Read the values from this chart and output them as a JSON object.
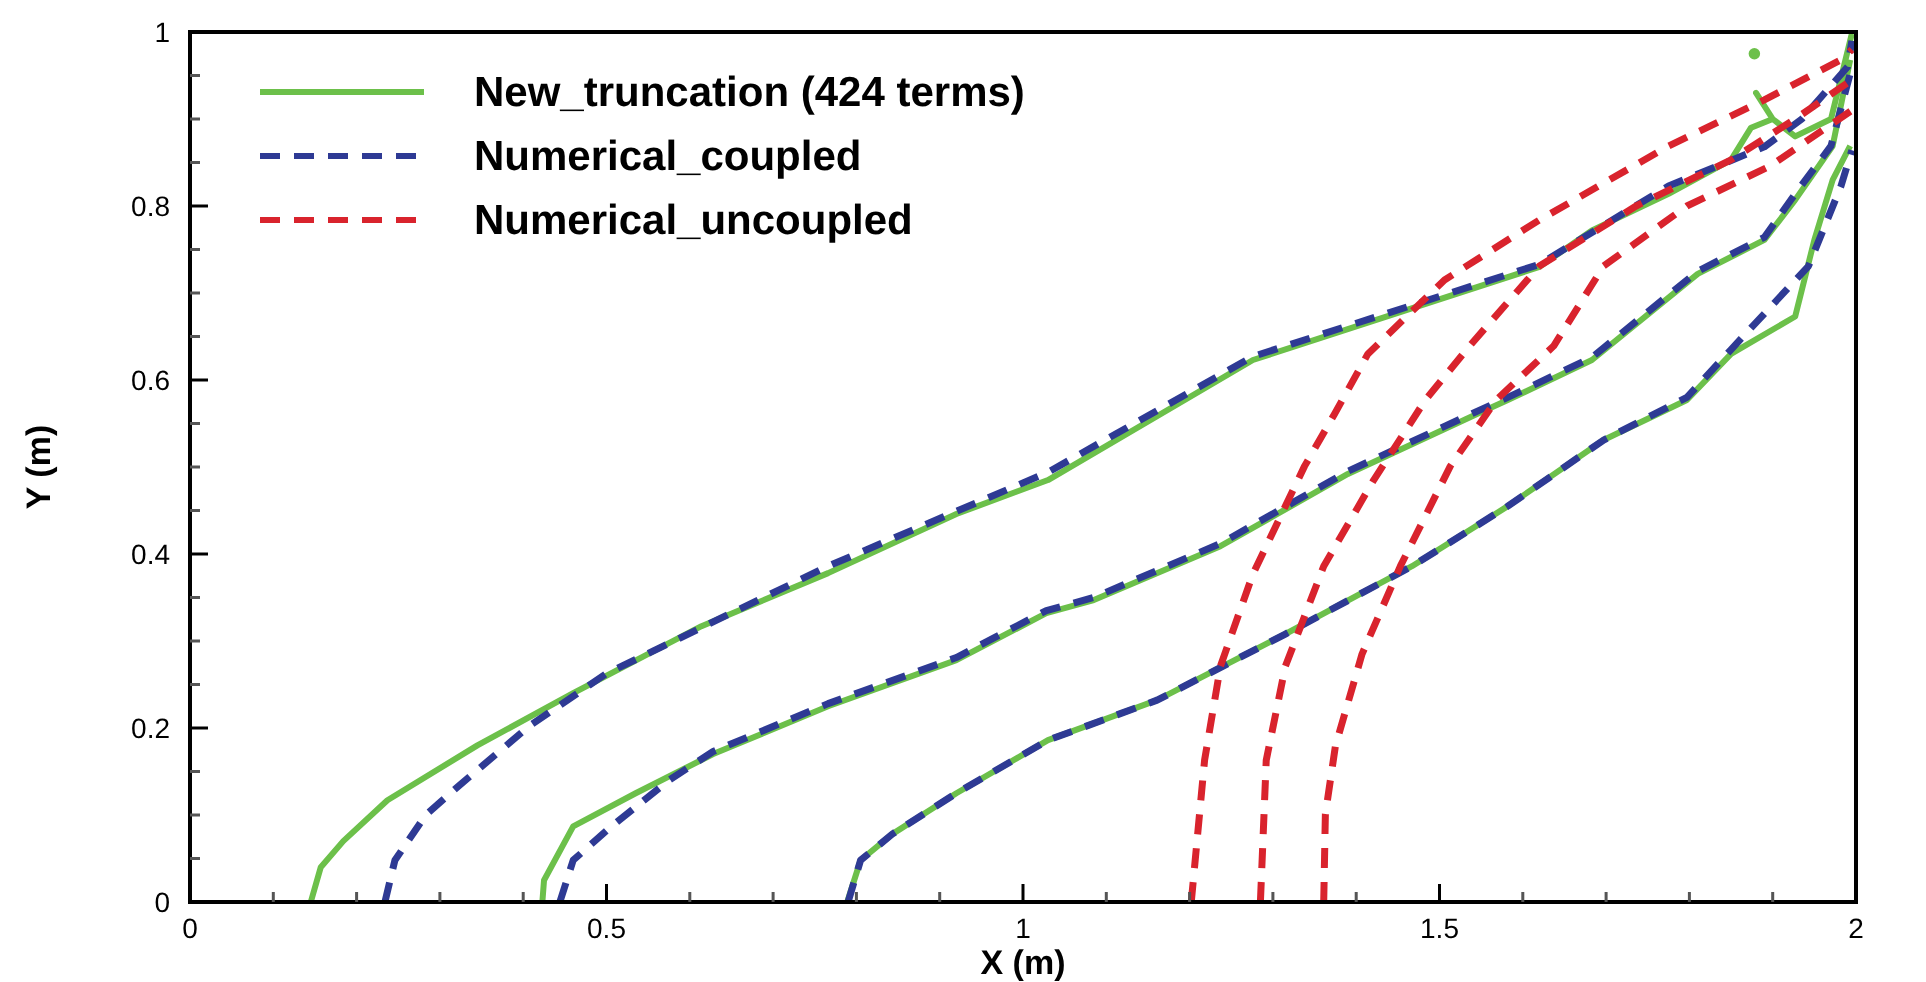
{
  "chart_data": {
    "type": "line",
    "xlabel": "X (m)",
    "ylabel": "Y (m)",
    "xlim": [
      0,
      2
    ],
    "ylim": [
      0,
      1
    ],
    "xticks": [
      0,
      {
        "value": 0.1,
        "label": null
      },
      {
        "value": 0.2,
        "label": null
      },
      {
        "value": 0.3,
        "label": null
      },
      {
        "value": 0.4,
        "label": null
      },
      0.5,
      {
        "value": 0.6,
        "label": null
      },
      {
        "value": 0.7,
        "label": null
      },
      {
        "value": 0.8,
        "label": null
      },
      {
        "value": 0.9,
        "label": null
      },
      1,
      {
        "value": 1.1,
        "label": null
      },
      {
        "value": 1.2,
        "label": null
      },
      {
        "value": 1.3,
        "label": null
      },
      {
        "value": 1.4,
        "label": null
      },
      1.5,
      {
        "value": 1.6,
        "label": null
      },
      {
        "value": 1.7,
        "label": null
      },
      {
        "value": 1.8,
        "label": null
      },
      {
        "value": 1.9,
        "label": null
      },
      2
    ],
    "yticks": [
      0,
      {
        "value": 0.05,
        "label": null
      },
      {
        "value": 0.1,
        "label": null
      },
      {
        "value": 0.15,
        "label": null
      },
      0.2,
      {
        "value": 0.25,
        "label": null
      },
      {
        "value": 0.3,
        "label": null
      },
      {
        "value": 0.35,
        "label": null
      },
      0.4,
      {
        "value": 0.45,
        "label": null
      },
      {
        "value": 0.5,
        "label": null
      },
      {
        "value": 0.55,
        "label": null
      },
      0.6,
      {
        "value": 0.65,
        "label": null
      },
      {
        "value": 0.7,
        "label": null
      },
      {
        "value": 0.75,
        "label": null
      },
      0.8,
      {
        "value": 0.85,
        "label": null
      },
      {
        "value": 0.9,
        "label": null
      },
      {
        "value": 0.95,
        "label": null
      },
      1
    ],
    "grid": false,
    "legend": "top left",
    "marker": "none",
    "series": [
      {
        "name": "New_truncation (424 terms)",
        "color": "#6cc04a",
        "line_style": "solid",
        "x": [
          0.145,
          0.157,
          0.184,
          0.237,
          0.345,
          0.46,
          0.614,
          0.766,
          0.92,
          1.03,
          1.276,
          1.62,
          1.683,
          1.775,
          1.85,
          1.874,
          1.9,
          1.88,
          1.9,
          1.927,
          1.97,
          1.995
        ],
        "values": [
          0,
          0.04,
          0.07,
          0.117,
          0.18,
          0.24,
          0.317,
          0.378,
          0.446,
          0.485,
          0.623,
          0.73,
          0.772,
          0.814,
          0.853,
          0.89,
          0.9,
          0.93,
          0.9,
          0.88,
          0.9,
          0.998
        ]
      },
      {
        "color": "#6cc04a",
        "line_style": "solid",
        "x": [
          0.423,
          0.425,
          0.46,
          0.535,
          0.628,
          0.766,
          0.92,
          1.028,
          1.085,
          1.237,
          1.39,
          1.545,
          1.582,
          1.683,
          1.81,
          1.89,
          1.927,
          1.972,
          1.993
        ],
        "values": [
          0,
          0.025,
          0.087,
          0.125,
          0.17,
          0.225,
          0.278,
          0.332,
          0.347,
          0.409,
          0.492,
          0.561,
          0.577,
          0.623,
          0.722,
          0.761,
          0.807,
          0.869,
          0.968
        ]
      },
      {
        "color": "#6cc04a",
        "line_style": "solid",
        "x": [
          0.789,
          0.805,
          0.843,
          0.92,
          1.03,
          1.161,
          1.315,
          1.467,
          1.582,
          1.697,
          1.797,
          1.85,
          1.927,
          1.95,
          1.972,
          1.993
        ],
        "values": [
          0,
          0.048,
          0.078,
          0.125,
          0.186,
          0.232,
          0.308,
          0.386,
          0.455,
          0.531,
          0.577,
          0.63,
          0.673,
          0.761,
          0.83,
          0.869
        ]
      },
      {
        "color": "#6cc04a",
        "type": "scatter",
        "marker": "circle",
        "x": [
          1.878
        ],
        "values": [
          0.975
        ]
      },
      {
        "name": "Numerical_coupled",
        "color": "#2e3a94",
        "line_style": "dashed",
        "x": [
          0.234,
          0.246,
          0.283,
          0.322,
          0.407,
          0.499,
          0.766,
          1.03,
          1.276,
          1.62,
          1.775,
          1.89,
          1.935,
          1.99,
          1.995
        ],
        "values": [
          0,
          0.048,
          0.1,
          0.133,
          0.202,
          0.262,
          0.386,
          0.494,
          0.627,
          0.733,
          0.823,
          0.868,
          0.9,
          0.96,
          0.99
        ]
      },
      {
        "color": "#2e3a94",
        "line_style": "dashed",
        "x": [
          0.444,
          0.46,
          0.506,
          0.575,
          0.628,
          0.766,
          0.92,
          1.028,
          1.085,
          1.237,
          1.39,
          1.545,
          1.582,
          1.683,
          1.81,
          1.89,
          1.927,
          1.97,
          1.993
        ],
        "values": [
          0,
          0.048,
          0.087,
          0.14,
          0.173,
          0.228,
          0.281,
          0.335,
          0.35,
          0.412,
          0.495,
          0.564,
          0.58,
          0.626,
          0.725,
          0.764,
          0.814,
          0.869,
          0.952
        ]
      },
      {
        "color": "#2e3a94",
        "line_style": "dashed",
        "x": [
          0.79,
          0.805,
          0.843,
          0.92,
          1.03,
          1.161,
          1.315,
          1.467,
          1.582,
          1.697,
          1.797,
          1.85,
          1.943,
          1.982,
          1.995
        ],
        "values": [
          0,
          0.048,
          0.078,
          0.125,
          0.186,
          0.232,
          0.308,
          0.386,
          0.455,
          0.531,
          0.58,
          0.635,
          0.731,
          0.823,
          0.864
        ]
      },
      {
        "name": "Numerical_uncoupled",
        "color": "#d9232d",
        "line_style": "dashed",
        "x": [
          1.202,
          1.218,
          1.237,
          1.276,
          1.338,
          1.374,
          1.414,
          1.506,
          1.62,
          1.775,
          1.89,
          1.982,
          1.995
        ],
        "values": [
          0,
          0.163,
          0.271,
          0.377,
          0.501,
          0.561,
          0.63,
          0.715,
          0.784,
          0.869,
          0.922,
          0.968,
          0.98
        ]
      },
      {
        "color": "#d9232d",
        "line_style": "dashed",
        "x": [
          1.285,
          1.292,
          1.315,
          1.361,
          1.421,
          1.483,
          1.536,
          1.62,
          1.736,
          1.85,
          1.927,
          1.995
        ],
        "values": [
          0,
          0.163,
          0.271,
          0.386,
          0.485,
          0.577,
          0.639,
          0.731,
          0.8,
          0.853,
          0.9,
          0.945
        ]
      },
      {
        "color": "#d9232d",
        "line_style": "dashed",
        "x": [
          1.361,
          1.363,
          1.375,
          1.407,
          1.453,
          1.513,
          1.568,
          1.637,
          1.697,
          1.797,
          1.897,
          1.995
        ],
        "values": [
          0,
          0.101,
          0.179,
          0.285,
          0.386,
          0.501,
          0.577,
          0.639,
          0.731,
          0.8,
          0.846,
          0.91
        ]
      }
    ]
  }
}
